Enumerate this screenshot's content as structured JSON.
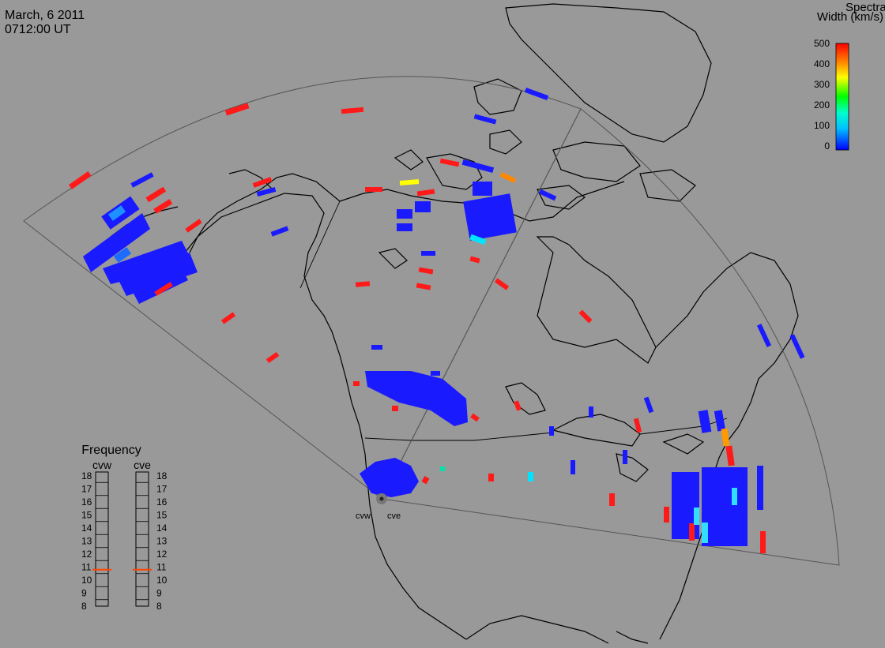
{
  "header": {
    "date": "March, 6 2011",
    "time": "0712:00 UT"
  },
  "colorbar": {
    "title_line1": "Spectral",
    "title_line2": "Width (km/s)",
    "ticks": [
      "500",
      "400",
      "300",
      "200",
      "100",
      "0"
    ],
    "range": [
      0,
      500
    ],
    "gradient": [
      "#0000ff",
      "#00bfff",
      "#00ffcc",
      "#00ff00",
      "#ffff00",
      "#ff8800",
      "#ff0000"
    ]
  },
  "frequency_panel": {
    "title": "Frequency",
    "radars": [
      {
        "label": "cvw",
        "frequency_mhz": 10.8
      },
      {
        "label": "cve",
        "frequency_mhz": 10.8
      }
    ],
    "scale": [
      "18",
      "17",
      "16",
      "15",
      "14",
      "13",
      "12",
      "11",
      "10",
      "9",
      "8"
    ],
    "marker_color": "#ff4400"
  },
  "map": {
    "background": "#999999",
    "land_outline_color": "#000000",
    "fov_outline_color": "#555555",
    "site_labels": {
      "west": "cvw",
      "east": "cve"
    },
    "site_marker_color": "#666666"
  }
}
